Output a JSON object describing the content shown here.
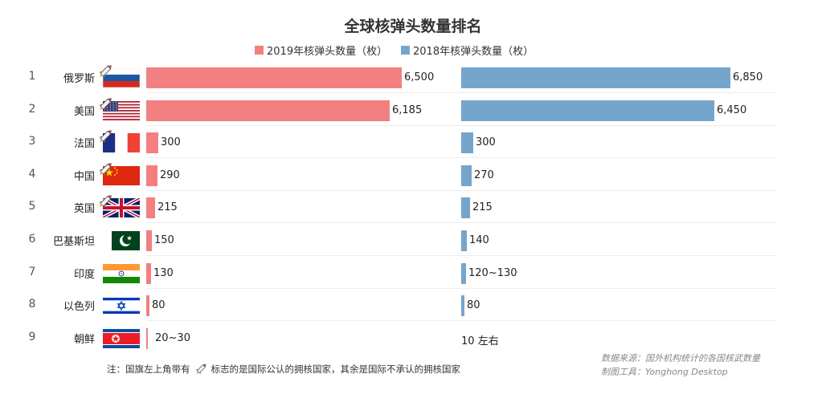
{
  "chart_data": {
    "type": "bar",
    "title": "全球核弹头数量排名",
    "legend_position": "top-center",
    "grid": false,
    "colors": {
      "2019": "#f28080",
      "2018": "#76a5cc"
    },
    "series": [
      {
        "name": "2019年核弹头数量（枚）",
        "values": [
          6500,
          6185,
          300,
          290,
          215,
          150,
          130,
          80,
          25
        ],
        "labels": [
          "6,500",
          "6,185",
          "300",
          "290",
          "215",
          "150",
          "130",
          "80",
          "20~30"
        ]
      },
      {
        "name": "2018年核弹头数量（枚）",
        "values": [
          6850,
          6450,
          300,
          270,
          215,
          140,
          125,
          80,
          10
        ],
        "labels": [
          "6,850",
          "6,450",
          "300",
          "270",
          "215",
          "140",
          "120~130",
          "80",
          "10 左右"
        ]
      }
    ],
    "categories": [
      "俄罗斯",
      "美国",
      "法国",
      "中国",
      "英国",
      "巴基斯坦",
      "印度",
      "以色列",
      "朝鲜"
    ],
    "ranks": [
      "1",
      "2",
      "3",
      "4",
      "5",
      "6",
      "7",
      "8",
      "9"
    ],
    "flags": [
      "russia-flag",
      "usa-flag",
      "france-flag",
      "china-flag",
      "uk-flag",
      "pakistan-flag",
      "india-flag",
      "israel-flag",
      "north-korea-flag"
    ],
    "nuclear_recognized": [
      true,
      true,
      true,
      true,
      true,
      false,
      false,
      false,
      false
    ],
    "footnote": {
      "prefix": "注：国旗左上角带有",
      "suffix": "标志的是国际公认的拥核国家，其余是国际不承认的拥核国家"
    },
    "source": "数据来源：国外机构统计的各国核武数量",
    "tool": "制图工具：Yonghong Desktop"
  }
}
